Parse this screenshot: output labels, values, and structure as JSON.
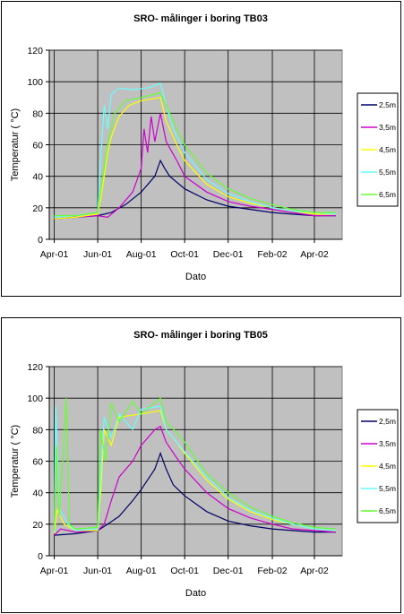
{
  "chart_data": [
    {
      "type": "line",
      "title": "SRO- målinger i boring TB03",
      "xlabel": "Dato",
      "ylabel": "Temperatur ( °C)",
      "ylim": [
        0,
        120
      ],
      "yticks": [
        "0",
        "20",
        "40",
        "60",
        "80",
        "100",
        "120"
      ],
      "xticks": [
        "Apr-01",
        "Jun-01",
        "Aug-01",
        "Oct-01",
        "Dec-01",
        "Feb-02",
        "Apr-02"
      ],
      "xlim": [
        "2001-03-25",
        "2002-05-10"
      ],
      "grid": true,
      "legend_position": "right",
      "series": [
        {
          "name": "2,5m",
          "color": "#000066",
          "points": [
            [
              "2001-04-01",
              13
            ],
            [
              "2001-05-01",
              14
            ],
            [
              "2001-06-01",
              15
            ],
            [
              "2001-06-20",
              17
            ],
            [
              "2001-07-10",
              22
            ],
            [
              "2001-08-01",
              30
            ],
            [
              "2001-08-20",
              40
            ],
            [
              "2001-08-28",
              50
            ],
            [
              "2001-09-03",
              45
            ],
            [
              "2001-09-10",
              40
            ],
            [
              "2001-10-01",
              32
            ],
            [
              "2001-11-01",
              25
            ],
            [
              "2001-12-01",
              21
            ],
            [
              "2002-01-01",
              19
            ],
            [
              "2002-02-01",
              17
            ],
            [
              "2002-03-01",
              16
            ],
            [
              "2002-04-01",
              15
            ],
            [
              "2002-05-01",
              15
            ]
          ]
        },
        {
          "name": "3,5m",
          "color": "#cc00cc",
          "points": [
            [
              "2001-04-01",
              13
            ],
            [
              "2001-05-01",
              14
            ],
            [
              "2001-06-01",
              15
            ],
            [
              "2001-06-15",
              14
            ],
            [
              "2001-07-01",
              20
            ],
            [
              "2001-07-20",
              30
            ],
            [
              "2001-08-01",
              45
            ],
            [
              "2001-08-05",
              70
            ],
            [
              "2001-08-10",
              55
            ],
            [
              "2001-08-15",
              78
            ],
            [
              "2001-08-20",
              62
            ],
            [
              "2001-08-28",
              80
            ],
            [
              "2001-09-05",
              62
            ],
            [
              "2001-09-20",
              50
            ],
            [
              "2001-10-01",
              40
            ],
            [
              "2001-11-01",
              30
            ],
            [
              "2001-12-01",
              24
            ],
            [
              "2002-01-01",
              21
            ],
            [
              "2002-02-01",
              19
            ],
            [
              "2002-03-01",
              17
            ],
            [
              "2002-04-01",
              15
            ],
            [
              "2002-05-01",
              15
            ]
          ]
        },
        {
          "name": "4,5m",
          "color": "#ffff00",
          "points": [
            [
              "2001-04-01",
              13
            ],
            [
              "2001-05-01",
              14
            ],
            [
              "2001-06-01",
              16
            ],
            [
              "2001-06-05",
              25
            ],
            [
              "2001-06-10",
              40
            ],
            [
              "2001-06-15",
              55
            ],
            [
              "2001-06-20",
              65
            ],
            [
              "2001-07-01",
              78
            ],
            [
              "2001-07-15",
              85
            ],
            [
              "2001-08-01",
              88
            ],
            [
              "2001-08-28",
              90
            ],
            [
              "2001-09-05",
              75
            ],
            [
              "2001-09-20",
              60
            ],
            [
              "2001-10-01",
              50
            ],
            [
              "2001-11-01",
              35
            ],
            [
              "2001-12-01",
              27
            ],
            [
              "2002-01-01",
              23
            ],
            [
              "2002-02-01",
              20
            ],
            [
              "2002-03-01",
              18
            ],
            [
              "2002-04-01",
              16
            ],
            [
              "2002-05-01",
              16
            ]
          ]
        },
        {
          "name": "5,5m",
          "color": "#66ffff",
          "points": [
            [
              "2001-04-01",
              14
            ],
            [
              "2001-05-01",
              15
            ],
            [
              "2001-06-01",
              17
            ],
            [
              "2001-06-05",
              50
            ],
            [
              "2001-06-10",
              85
            ],
            [
              "2001-06-15",
              70
            ],
            [
              "2001-06-20",
              92
            ],
            [
              "2001-07-01",
              96
            ],
            [
              "2001-07-20",
              95
            ],
            [
              "2001-08-10",
              96
            ],
            [
              "2001-08-28",
              99
            ],
            [
              "2001-09-05",
              85
            ],
            [
              "2001-09-15",
              70
            ],
            [
              "2001-10-01",
              55
            ],
            [
              "2001-11-01",
              38
            ],
            [
              "2001-12-01",
              29
            ],
            [
              "2002-01-01",
              24
            ],
            [
              "2002-02-01",
              20
            ],
            [
              "2002-03-01",
              18
            ],
            [
              "2002-04-01",
              17
            ],
            [
              "2002-05-01",
              16
            ]
          ]
        },
        {
          "name": "6,5m",
          "color": "#66ff33",
          "points": [
            [
              "2001-04-01",
              15
            ],
            [
              "2001-05-01",
              15
            ],
            [
              "2001-06-01",
              17
            ],
            [
              "2001-06-05",
              30
            ],
            [
              "2001-06-15",
              60
            ],
            [
              "2001-06-25",
              80
            ],
            [
              "2001-07-10",
              88
            ],
            [
              "2001-08-01",
              90
            ],
            [
              "2001-08-28",
              93
            ],
            [
              "2001-09-05",
              85
            ],
            [
              "2001-09-20",
              70
            ],
            [
              "2001-10-01",
              60
            ],
            [
              "2001-11-01",
              42
            ],
            [
              "2001-12-01",
              32
            ],
            [
              "2002-01-01",
              26
            ],
            [
              "2002-02-01",
              22
            ],
            [
              "2002-03-01",
              19
            ],
            [
              "2002-04-01",
              17
            ],
            [
              "2002-05-01",
              17
            ]
          ]
        }
      ]
    },
    {
      "type": "line",
      "title": "SRO- målinger i boring TB05",
      "xlabel": "Dato",
      "ylabel": "Temperatur ( °C)",
      "ylim": [
        0,
        120
      ],
      "yticks": [
        "0",
        "20",
        "40",
        "60",
        "80",
        "100",
        "120"
      ],
      "xticks": [
        "Apr-01",
        "Jun-01",
        "Aug-01",
        "Oct-01",
        "Dec-01",
        "Feb-02",
        "Apr-02"
      ],
      "xlim": [
        "2001-03-25",
        "2002-05-10"
      ],
      "grid": true,
      "legend_position": "right",
      "series": [
        {
          "name": "2,5m",
          "color": "#000066",
          "points": [
            [
              "2001-04-01",
              13
            ],
            [
              "2001-05-01",
              14
            ],
            [
              "2001-06-01",
              16
            ],
            [
              "2001-06-15",
              20
            ],
            [
              "2001-07-01",
              25
            ],
            [
              "2001-07-20",
              35
            ],
            [
              "2001-08-01",
              42
            ],
            [
              "2001-08-20",
              55
            ],
            [
              "2001-08-28",
              65
            ],
            [
              "2001-09-05",
              55
            ],
            [
              "2001-09-15",
              45
            ],
            [
              "2001-10-01",
              38
            ],
            [
              "2001-11-01",
              28
            ],
            [
              "2001-12-01",
              22
            ],
            [
              "2002-01-01",
              19
            ],
            [
              "2002-02-01",
              17
            ],
            [
              "2002-03-01",
              16
            ],
            [
              "2002-04-01",
              15
            ],
            [
              "2002-05-01",
              15
            ]
          ]
        },
        {
          "name": "3,5m",
          "color": "#cc00cc",
          "points": [
            [
              "2001-04-01",
              13
            ],
            [
              "2001-04-10",
              17
            ],
            [
              "2001-05-01",
              15
            ],
            [
              "2001-06-01",
              16
            ],
            [
              "2001-06-10",
              20
            ],
            [
              "2001-06-20",
              35
            ],
            [
              "2001-07-01",
              50
            ],
            [
              "2001-07-20",
              60
            ],
            [
              "2001-08-01",
              70
            ],
            [
              "2001-08-20",
              80
            ],
            [
              "2001-08-28",
              82
            ],
            [
              "2001-09-05",
              72
            ],
            [
              "2001-09-20",
              62
            ],
            [
              "2001-10-01",
              55
            ],
            [
              "2001-11-01",
              40
            ],
            [
              "2001-12-01",
              30
            ],
            [
              "2002-01-01",
              24
            ],
            [
              "2002-02-01",
              20
            ],
            [
              "2002-03-01",
              17
            ],
            [
              "2002-04-01",
              16
            ],
            [
              "2002-05-01",
              15
            ]
          ]
        },
        {
          "name": "4,5m",
          "color": "#ffff00",
          "points": [
            [
              "2001-04-01",
              14
            ],
            [
              "2001-04-05",
              29
            ],
            [
              "2001-04-15",
              20
            ],
            [
              "2001-05-01",
              16
            ],
            [
              "2001-06-01",
              16
            ],
            [
              "2001-06-05",
              40
            ],
            [
              "2001-06-10",
              80
            ],
            [
              "2001-06-20",
              70
            ],
            [
              "2001-07-01",
              88
            ],
            [
              "2001-08-01",
              90
            ],
            [
              "2001-08-28",
              92
            ],
            [
              "2001-09-05",
              80
            ],
            [
              "2001-09-20",
              72
            ],
            [
              "2001-10-01",
              65
            ],
            [
              "2001-11-01",
              48
            ],
            [
              "2001-12-01",
              36
            ],
            [
              "2002-01-01",
              28
            ],
            [
              "2002-02-01",
              23
            ],
            [
              "2002-03-01",
              20
            ],
            [
              "2002-04-01",
              17
            ],
            [
              "2002-05-01",
              16
            ]
          ]
        },
        {
          "name": "5,5m",
          "color": "#66ffff",
          "points": [
            [
              "2001-04-01",
              15
            ],
            [
              "2001-04-03",
              95
            ],
            [
              "2001-04-08",
              30
            ],
            [
              "2001-04-20",
              20
            ],
            [
              "2001-05-01",
              16
            ],
            [
              "2001-06-01",
              17
            ],
            [
              "2001-06-05",
              50
            ],
            [
              "2001-06-10",
              88
            ],
            [
              "2001-06-20",
              75
            ],
            [
              "2001-07-01",
              90
            ],
            [
              "2001-07-20",
              80
            ],
            [
              "2001-08-01",
              93
            ],
            [
              "2001-08-28",
              95
            ],
            [
              "2001-09-05",
              80
            ],
            [
              "2001-09-20",
              72
            ],
            [
              "2001-10-01",
              66
            ],
            [
              "2001-11-01",
              50
            ],
            [
              "2001-12-01",
              37
            ],
            [
              "2002-01-01",
              29
            ],
            [
              "2002-02-01",
              24
            ],
            [
              "2002-03-01",
              20
            ],
            [
              "2002-04-01",
              17
            ],
            [
              "2002-05-01",
              16
            ]
          ]
        },
        {
          "name": "6,5m",
          "color": "#66ff33",
          "points": [
            [
              "2001-04-01",
              16
            ],
            [
              "2001-04-04",
              70
            ],
            [
              "2001-04-08",
              25
            ],
            [
              "2001-04-18",
              100
            ],
            [
              "2001-04-22",
              20
            ],
            [
              "2001-05-01",
              17
            ],
            [
              "2001-06-01",
              18
            ],
            [
              "2001-06-05",
              80
            ],
            [
              "2001-06-12",
              60
            ],
            [
              "2001-06-20",
              97
            ],
            [
              "2001-07-01",
              85
            ],
            [
              "2001-07-20",
              98
            ],
            [
              "2001-08-01",
              90
            ],
            [
              "2001-08-28",
              100
            ],
            [
              "2001-09-05",
              85
            ],
            [
              "2001-09-20",
              78
            ],
            [
              "2001-10-01",
              72
            ],
            [
              "2001-11-01",
              52
            ],
            [
              "2001-12-01",
              40
            ],
            [
              "2002-01-01",
              31
            ],
            [
              "2002-02-01",
              25
            ],
            [
              "2002-03-01",
              21
            ],
            [
              "2002-04-01",
              18
            ],
            [
              "2002-05-01",
              17
            ]
          ]
        }
      ]
    }
  ]
}
